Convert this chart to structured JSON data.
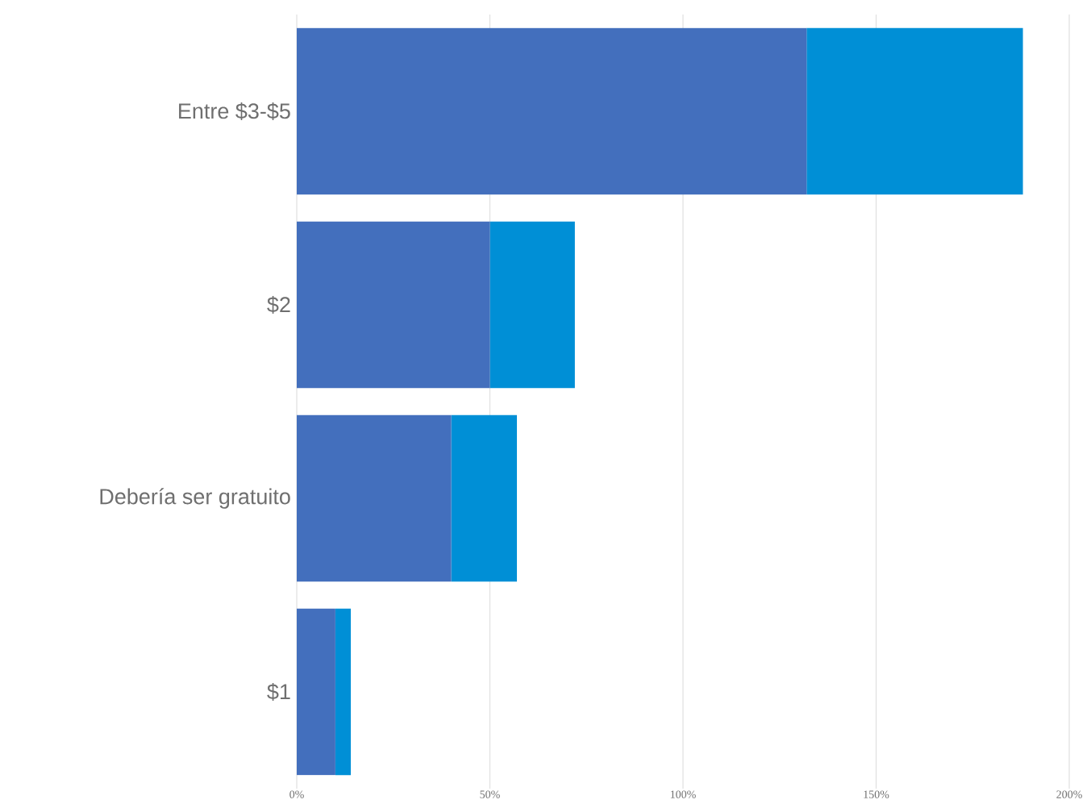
{
  "chart_data": {
    "type": "bar",
    "orientation": "horizontal",
    "stacked": true,
    "categories": [
      "Entre $3-$5",
      "$2",
      "Debería ser gratuito",
      "$1"
    ],
    "series": [
      {
        "color": "#436fbd",
        "values": [
          132,
          50,
          40,
          10
        ]
      },
      {
        "color": "#008fd6",
        "values": [
          56,
          22,
          17,
          4
        ]
      }
    ],
    "xlim": [
      0,
      200
    ],
    "xticks": [
      {
        "value": 0,
        "label": "0%"
      },
      {
        "value": 50,
        "label": "50%"
      },
      {
        "value": 100,
        "label": "100%"
      },
      {
        "value": 150,
        "label": "150%"
      },
      {
        "value": 200,
        "label": "200%"
      }
    ],
    "grid": "x"
  }
}
